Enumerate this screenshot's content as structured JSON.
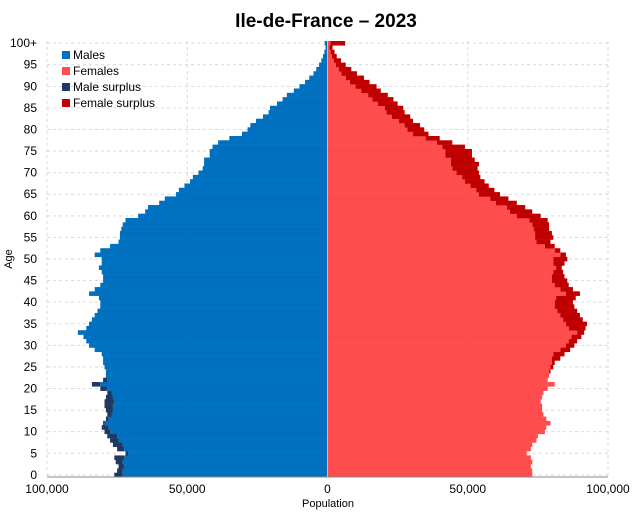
{
  "chart_data": {
    "type": "bar",
    "orientation": "horizontal",
    "title": "Ile-de-France – 2023",
    "xlabel": "Population",
    "ylabel": "Age",
    "xlim": [
      -100000,
      100000
    ],
    "ylim": [
      0,
      100
    ],
    "x_tick_labels": [
      "100,000",
      "50,000",
      "0",
      "50,000",
      "100,000"
    ],
    "x_tick_values": [
      -100000,
      -50000,
      0,
      50000,
      100000
    ],
    "y_tick_labels": [
      "0",
      "5",
      "10",
      "15",
      "20",
      "25",
      "30",
      "35",
      "40",
      "45",
      "50",
      "55",
      "60",
      "65",
      "70",
      "75",
      "80",
      "85",
      "90",
      "95",
      "100+"
    ],
    "y_tick_values": [
      0,
      5,
      10,
      15,
      20,
      25,
      30,
      35,
      40,
      45,
      50,
      55,
      60,
      65,
      70,
      75,
      80,
      85,
      90,
      95,
      100
    ],
    "grid": true,
    "legend_position": "top-left",
    "legend": [
      "Males",
      "Females",
      "Male surplus",
      "Female surplus"
    ],
    "colors": {
      "males": "#0070c0",
      "females": "#ff4d4d",
      "male_surplus": "#1f3864",
      "female_surplus": "#c00000"
    },
    "ages": [
      0,
      1,
      2,
      3,
      4,
      5,
      6,
      7,
      8,
      9,
      10,
      11,
      12,
      13,
      14,
      15,
      16,
      17,
      18,
      19,
      20,
      21,
      22,
      23,
      24,
      25,
      26,
      27,
      28,
      29,
      30,
      31,
      32,
      33,
      34,
      35,
      36,
      37,
      38,
      39,
      40,
      41,
      42,
      43,
      44,
      45,
      46,
      47,
      48,
      49,
      50,
      51,
      52,
      53,
      54,
      55,
      56,
      57,
      58,
      59,
      60,
      61,
      62,
      63,
      64,
      65,
      66,
      67,
      68,
      69,
      70,
      71,
      72,
      73,
      74,
      75,
      76,
      77,
      78,
      79,
      80,
      81,
      82,
      83,
      84,
      85,
      86,
      87,
      88,
      89,
      90,
      91,
      92,
      93,
      94,
      95,
      96,
      97,
      98,
      99,
      100
    ],
    "series": [
      {
        "name": "Males",
        "values": [
          76000,
          75000,
          74500,
          75500,
          76000,
          72000,
          75000,
          76500,
          77500,
          78500,
          79500,
          80500,
          80000,
          79000,
          78500,
          79000,
          79500,
          79500,
          79000,
          78500,
          81000,
          84000,
          80000,
          79000,
          79000,
          79500,
          80000,
          80000,
          80500,
          83000,
          85000,
          86000,
          87000,
          89000,
          86000,
          85000,
          84000,
          83000,
          82000,
          81000,
          81000,
          81500,
          85000,
          83000,
          81000,
          80000,
          80000,
          80500,
          81500,
          80500,
          80500,
          83000,
          81000,
          77500,
          74500,
          74000,
          74000,
          73500,
          73000,
          72000,
          67500,
          65000,
          64000,
          60000,
          58000,
          54000,
          53000,
          51000,
          49000,
          48000,
          46000,
          44500,
          44000,
          44000,
          42000,
          42000,
          41000,
          39000,
          35000,
          30500,
          28500,
          27500,
          25500,
          23000,
          21000,
          20500,
          18000,
          16000,
          14500,
          12000,
          10000,
          8000,
          6500,
          5000,
          4000,
          3000,
          2200,
          1600,
          1100,
          700,
          1000
        ]
      },
      {
        "name": "Females",
        "values": [
          73000,
          73000,
          72500,
          73000,
          72500,
          71000,
          72500,
          73000,
          74500,
          75000,
          77500,
          78000,
          79500,
          78000,
          77000,
          76500,
          76500,
          76000,
          76500,
          77000,
          78500,
          81000,
          78500,
          79000,
          79500,
          80500,
          81000,
          83000,
          84500,
          86500,
          88000,
          89000,
          90500,
          91500,
          92000,
          92500,
          91000,
          90000,
          89000,
          88000,
          87500,
          88500,
          90000,
          87500,
          86000,
          85500,
          84500,
          84000,
          83500,
          84500,
          85500,
          85000,
          83000,
          81000,
          79500,
          80500,
          80000,
          79000,
          79000,
          78500,
          76000,
          73000,
          70500,
          67500,
          64500,
          61500,
          59500,
          57500,
          56000,
          54500,
          54000,
          53500,
          54000,
          52500,
          51500,
          51500,
          49000,
          44500,
          40000,
          36000,
          34500,
          33000,
          30500,
          29500,
          27500,
          27000,
          25000,
          23500,
          21500,
          19000,
          17500,
          15000,
          13000,
          10500,
          8500,
          6500,
          4800,
          3300,
          2500,
          1800,
          6300
        ]
      }
    ]
  }
}
